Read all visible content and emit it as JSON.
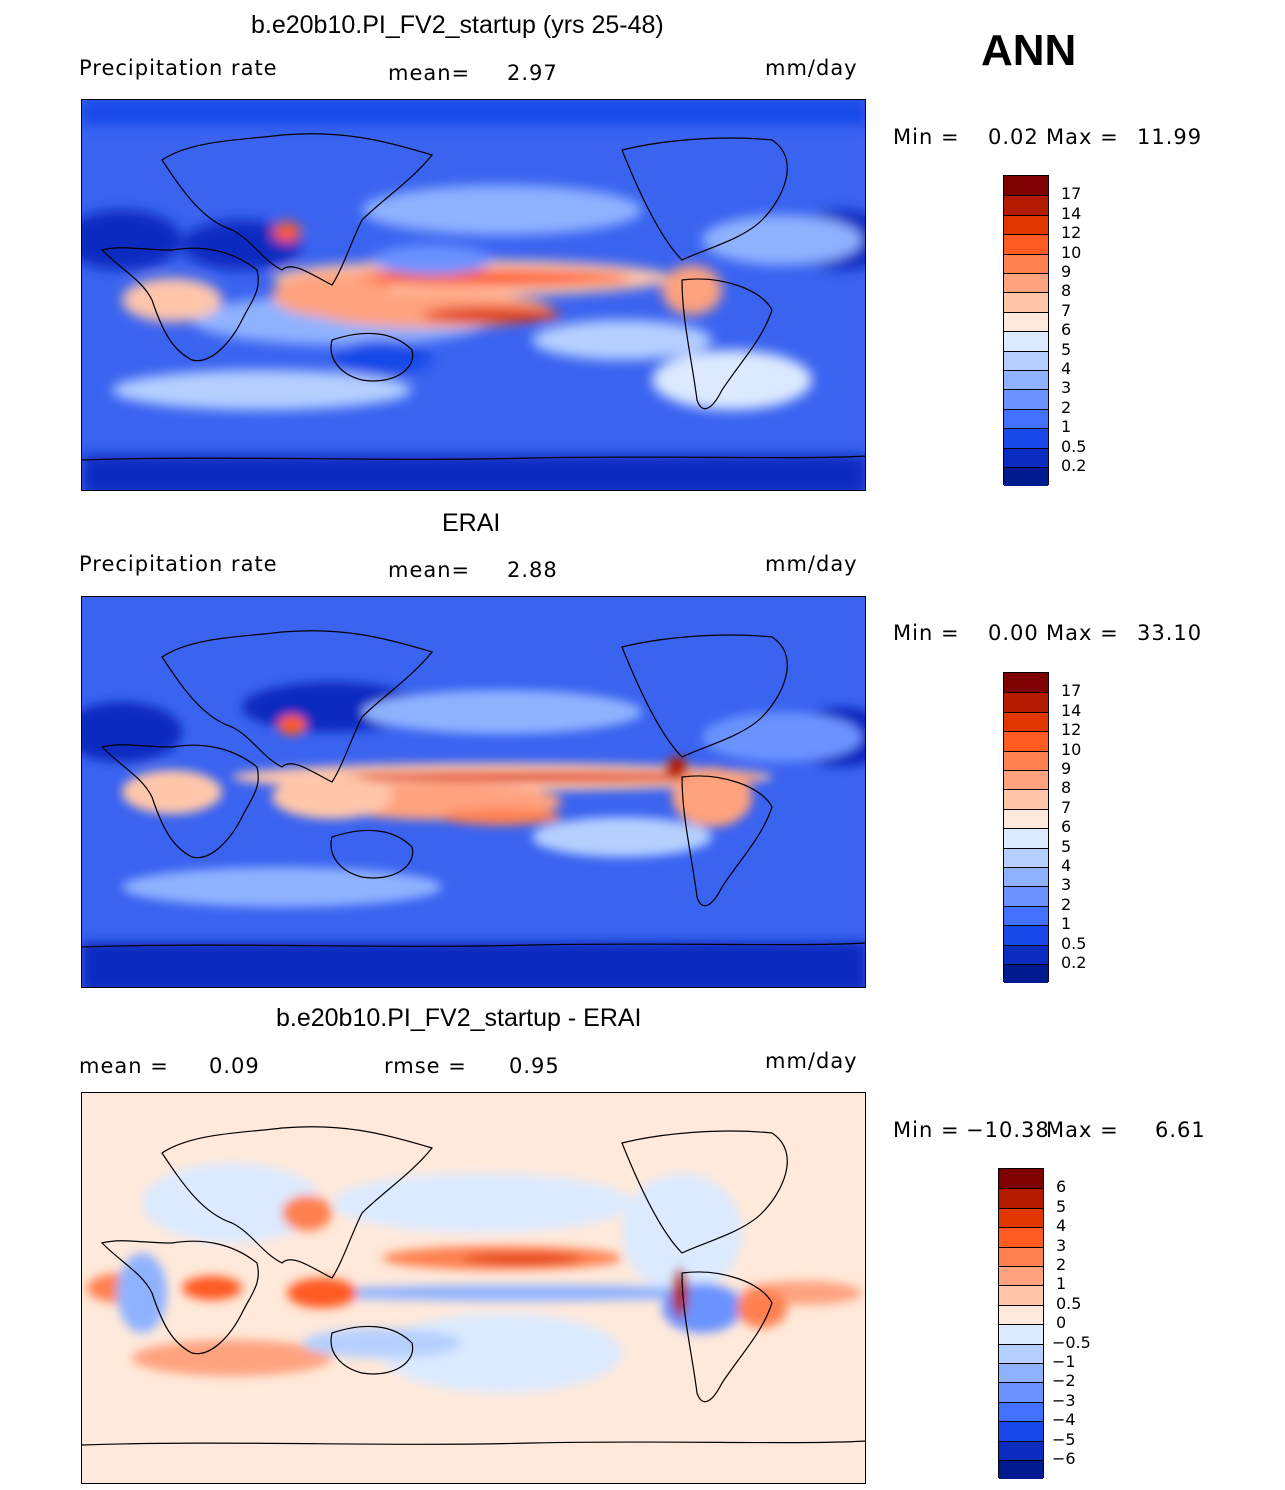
{
  "season": "ANN",
  "panels": [
    {
      "id": "model",
      "title": "b.e20b10.PI_FV2_startup (yrs 25-48)",
      "left_label": "Precipitation rate",
      "center_label": "mean=",
      "center_value": "2.97",
      "units": "mm/day",
      "minmax": {
        "min_label": "Min =",
        "min": "0.02",
        "max_label": "Max =",
        "max": "11.99"
      },
      "colorbar": {
        "labels": [
          "17",
          "14",
          "12",
          "10",
          "9",
          "8",
          "7",
          "6",
          "5",
          "4",
          "3",
          "2",
          "1",
          "0.5",
          "0.2"
        ],
        "colors": [
          "#7f0000",
          "#b31a00",
          "#e03700",
          "#ff5a22",
          "#ff8050",
          "#ffa27e",
          "#ffc6aa",
          "#ffe9da",
          "#dceaff",
          "#b5d0ff",
          "#8fb2ff",
          "#6a93ff",
          "#4270ff",
          "#1848e8",
          "#0a2cc0",
          "#001a8f"
        ]
      }
    },
    {
      "id": "obs",
      "title": "ERAI",
      "left_label": "Precipitation rate",
      "center_label": "mean=",
      "center_value": "2.88",
      "units": "mm/day",
      "minmax": {
        "min_label": "Min =",
        "min": "0.00",
        "max_label": "Max =",
        "max": "33.10"
      },
      "colorbar": {
        "labels": [
          "17",
          "14",
          "12",
          "10",
          "9",
          "8",
          "7",
          "6",
          "5",
          "4",
          "3",
          "2",
          "1",
          "0.5",
          "0.2"
        ],
        "colors": [
          "#7f0000",
          "#b31a00",
          "#e03700",
          "#ff5a22",
          "#ff8050",
          "#ffa27e",
          "#ffc6aa",
          "#ffe9da",
          "#dceaff",
          "#b5d0ff",
          "#8fb2ff",
          "#6a93ff",
          "#4270ff",
          "#1848e8",
          "#0a2cc0",
          "#001a8f"
        ]
      }
    },
    {
      "id": "diff",
      "title": "b.e20b10.PI_FV2_startup - ERAI",
      "left_label": "mean =",
      "left_value": "0.09",
      "center_label": "rmse =",
      "center_value": "0.95",
      "units": "mm/day",
      "minmax": {
        "min_label": "Min =",
        "min": "−10.38",
        "max_label": "Max =",
        "max": "6.61"
      },
      "colorbar": {
        "labels": [
          "6",
          "5",
          "4",
          "3",
          "2",
          "1",
          "0.5",
          "0",
          "−0.5",
          "−1",
          "−2",
          "−3",
          "−4",
          "−5",
          "−6"
        ],
        "colors": [
          "#7f0000",
          "#b31a00",
          "#e03700",
          "#ff5a22",
          "#ff8050",
          "#ffa27e",
          "#ffc6aa",
          "#ffe9da",
          "#dceaff",
          "#b5d0ff",
          "#8fb2ff",
          "#6a93ff",
          "#4270ff",
          "#1848e8",
          "#0a2cc0",
          "#001a8f"
        ]
      }
    }
  ]
}
